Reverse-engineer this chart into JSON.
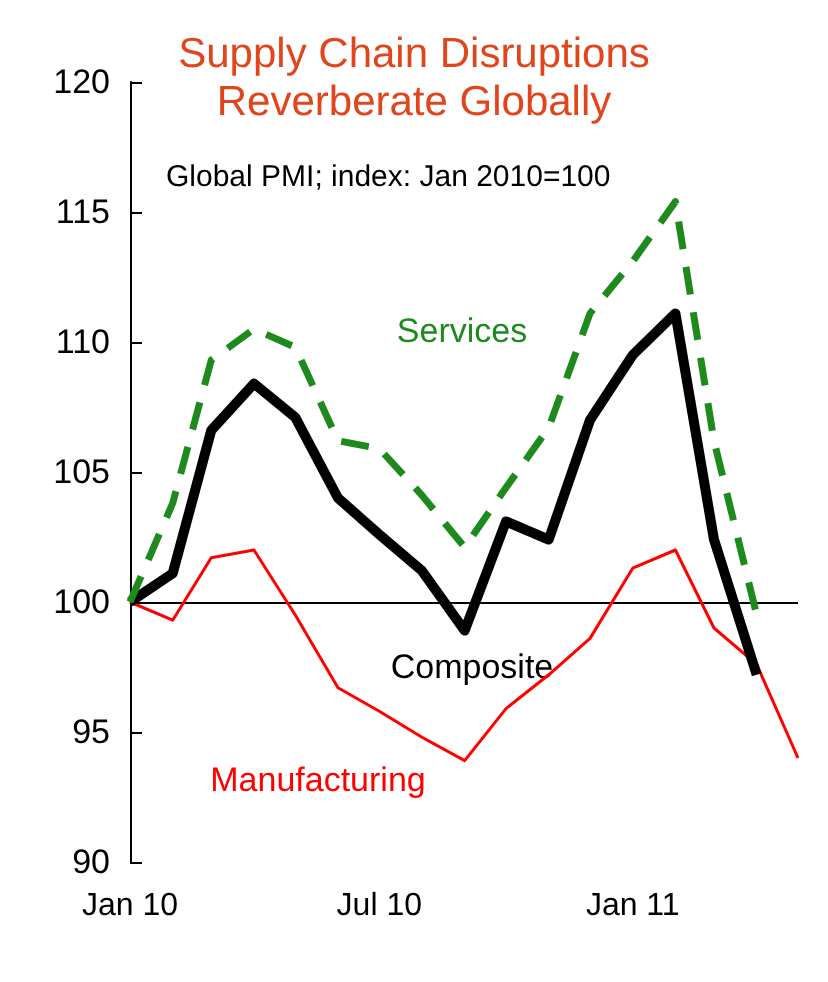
{
  "chart_data": {
    "type": "line",
    "title": "Supply Chain Disruptions\nReverberate Globally",
    "subtitle": "Global PMI; index: Jan 2010=100",
    "x": [
      "2010-01",
      "2010-02",
      "2010-03",
      "2010-04",
      "2010-05",
      "2010-06",
      "2010-07",
      "2010-08",
      "2010-09",
      "2010-10",
      "2010-11",
      "2010-12",
      "2011-01",
      "2011-02",
      "2011-03",
      "2011-04"
    ],
    "series": [
      {
        "name": "Services",
        "color": "#1e8a1e",
        "line_style": "dashed",
        "values": [
          100,
          103.8,
          109.3,
          110.5,
          109.8,
          106.2,
          105.9,
          104.1,
          102.1,
          104.4,
          106.7,
          111.1,
          113.1,
          115.4,
          106.2,
          99.5
        ]
      },
      {
        "name": "Composite",
        "color": "#000000",
        "line_style": "solid",
        "values": [
          100,
          101.1,
          106.6,
          108.4,
          107.1,
          104.0,
          102.6,
          101.2,
          98.9,
          103.1,
          102.4,
          107.0,
          109.5,
          111.1,
          102.4,
          97.2
        ]
      },
      {
        "name": "Manufacturing",
        "color": "#ff0000",
        "line_style": "solid",
        "x": [
          "2010-01",
          "2010-02",
          "2010-03",
          "2010-04",
          "2010-05",
          "2010-06",
          "2010-07",
          "2010-08",
          "2010-09",
          "2010-10",
          "2010-11",
          "2010-12",
          "2011-01",
          "2011-02",
          "2011-03",
          "2011-04",
          "2011-05"
        ],
        "values": [
          100,
          99.3,
          101.7,
          102.0,
          99.5,
          96.7,
          95.8,
          94.8,
          93.9,
          95.9,
          97.2,
          98.6,
          101.3,
          102.0,
          99.0,
          97.6,
          94.0
        ]
      }
    ],
    "xlim": [
      "2010-01",
      "2011-05"
    ],
    "xticks": [
      {
        "value": "2010-01",
        "label": "Jan 10"
      },
      {
        "value": "2010-07",
        "label": "Jul 10"
      },
      {
        "value": "2011-01",
        "label": "Jan 11"
      }
    ],
    "ylim": [
      90,
      120
    ],
    "yticks": [
      90,
      95,
      100,
      105,
      110,
      115,
      120
    ],
    "ref_lines": [
      {
        "axis": "y",
        "value": 100,
        "color": "#000000"
      }
    ],
    "grid": false,
    "legend": false,
    "marker": "none"
  }
}
